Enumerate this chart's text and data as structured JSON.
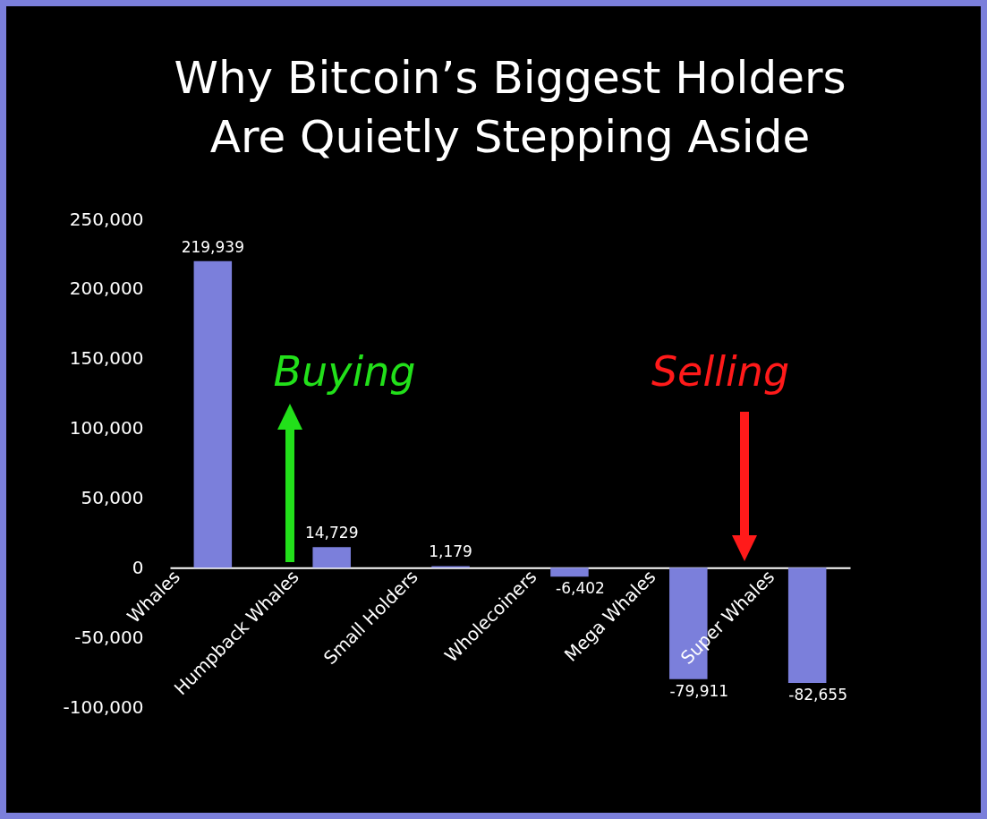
{
  "chart_data": {
    "type": "bar",
    "title": "Why Bitcoin’s Biggest Holders Are Quietly Stepping Aside",
    "categories": [
      "Whales",
      "Humpback Whales",
      "Small Holders",
      "Wholecoiners",
      "Mega Whales",
      "Super Whales"
    ],
    "values": [
      219939,
      14729,
      1179,
      -6402,
      -79911,
      -82655
    ],
    "color": "#7b7fdb",
    "ylim": [
      -100000,
      250000
    ],
    "yticks": [
      {
        "value": -100000,
        "label": "-100,000"
      },
      {
        "value": -50000,
        "label": "-50,000"
      },
      0,
      {
        "value": 50000,
        "label": "50,000"
      },
      {
        "value": 100000,
        "label": "100,000"
      },
      {
        "value": 150000,
        "label": "150,000"
      },
      {
        "value": 200000,
        "label": "200,000"
      },
      {
        "value": 250000,
        "label": "250,000"
      }
    ],
    "value_labels": [
      "219,939",
      "14,729",
      "1,179",
      "-6,402",
      "-79,911",
      "-82,655"
    ],
    "annotations": [
      "Buying",
      "Selling"
    ]
  }
}
